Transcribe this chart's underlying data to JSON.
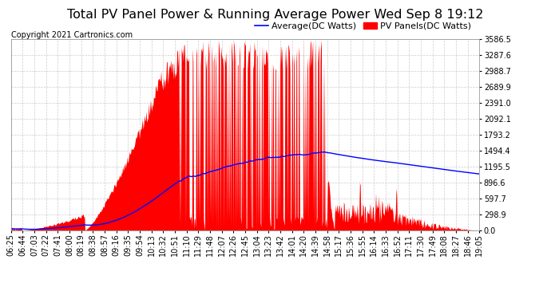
{
  "title": "Total PV Panel Power & Running Average Power Wed Sep 8 19:12",
  "copyright": "Copyright 2021 Cartronics.com",
  "legend_average": "Average(DC Watts)",
  "legend_pv": "PV Panels(DC Watts)",
  "ytick_labels": [
    "0.0",
    "298.9",
    "597.7",
    "896.6",
    "1195.5",
    "1494.4",
    "1793.2",
    "2092.1",
    "2391.0",
    "2689.9",
    "2988.7",
    "3287.6",
    "3586.5"
  ],
  "ytick_values": [
    0.0,
    298.9,
    597.7,
    896.6,
    1195.5,
    1494.4,
    1793.2,
    2092.1,
    2391.0,
    2689.9,
    2988.7,
    3287.6,
    3586.5
  ],
  "ymax": 3586.5,
  "ymin": 0.0,
  "pv_color": "#FF0000",
  "avg_color": "#0000FF",
  "bg_color": "#FFFFFF",
  "grid_color": "#CCCCCC",
  "title_color": "#000000",
  "copyright_color": "#000000",
  "title_fontsize": 11.5,
  "copyright_fontsize": 7,
  "tick_fontsize": 7,
  "legend_fontsize": 8,
  "xtick_labels": [
    "06:25",
    "06:44",
    "07:03",
    "07:22",
    "07:41",
    "08:00",
    "08:19",
    "08:38",
    "08:57",
    "09:16",
    "09:35",
    "09:54",
    "10:13",
    "10:32",
    "10:51",
    "11:10",
    "11:29",
    "11:48",
    "12:07",
    "12:26",
    "12:45",
    "13:04",
    "13:23",
    "13:42",
    "14:01",
    "14:20",
    "14:39",
    "14:58",
    "15:17",
    "15:36",
    "15:55",
    "16:14",
    "16:33",
    "16:52",
    "17:11",
    "17:30",
    "17:49",
    "18:08",
    "18:27",
    "18:46",
    "19:05"
  ]
}
